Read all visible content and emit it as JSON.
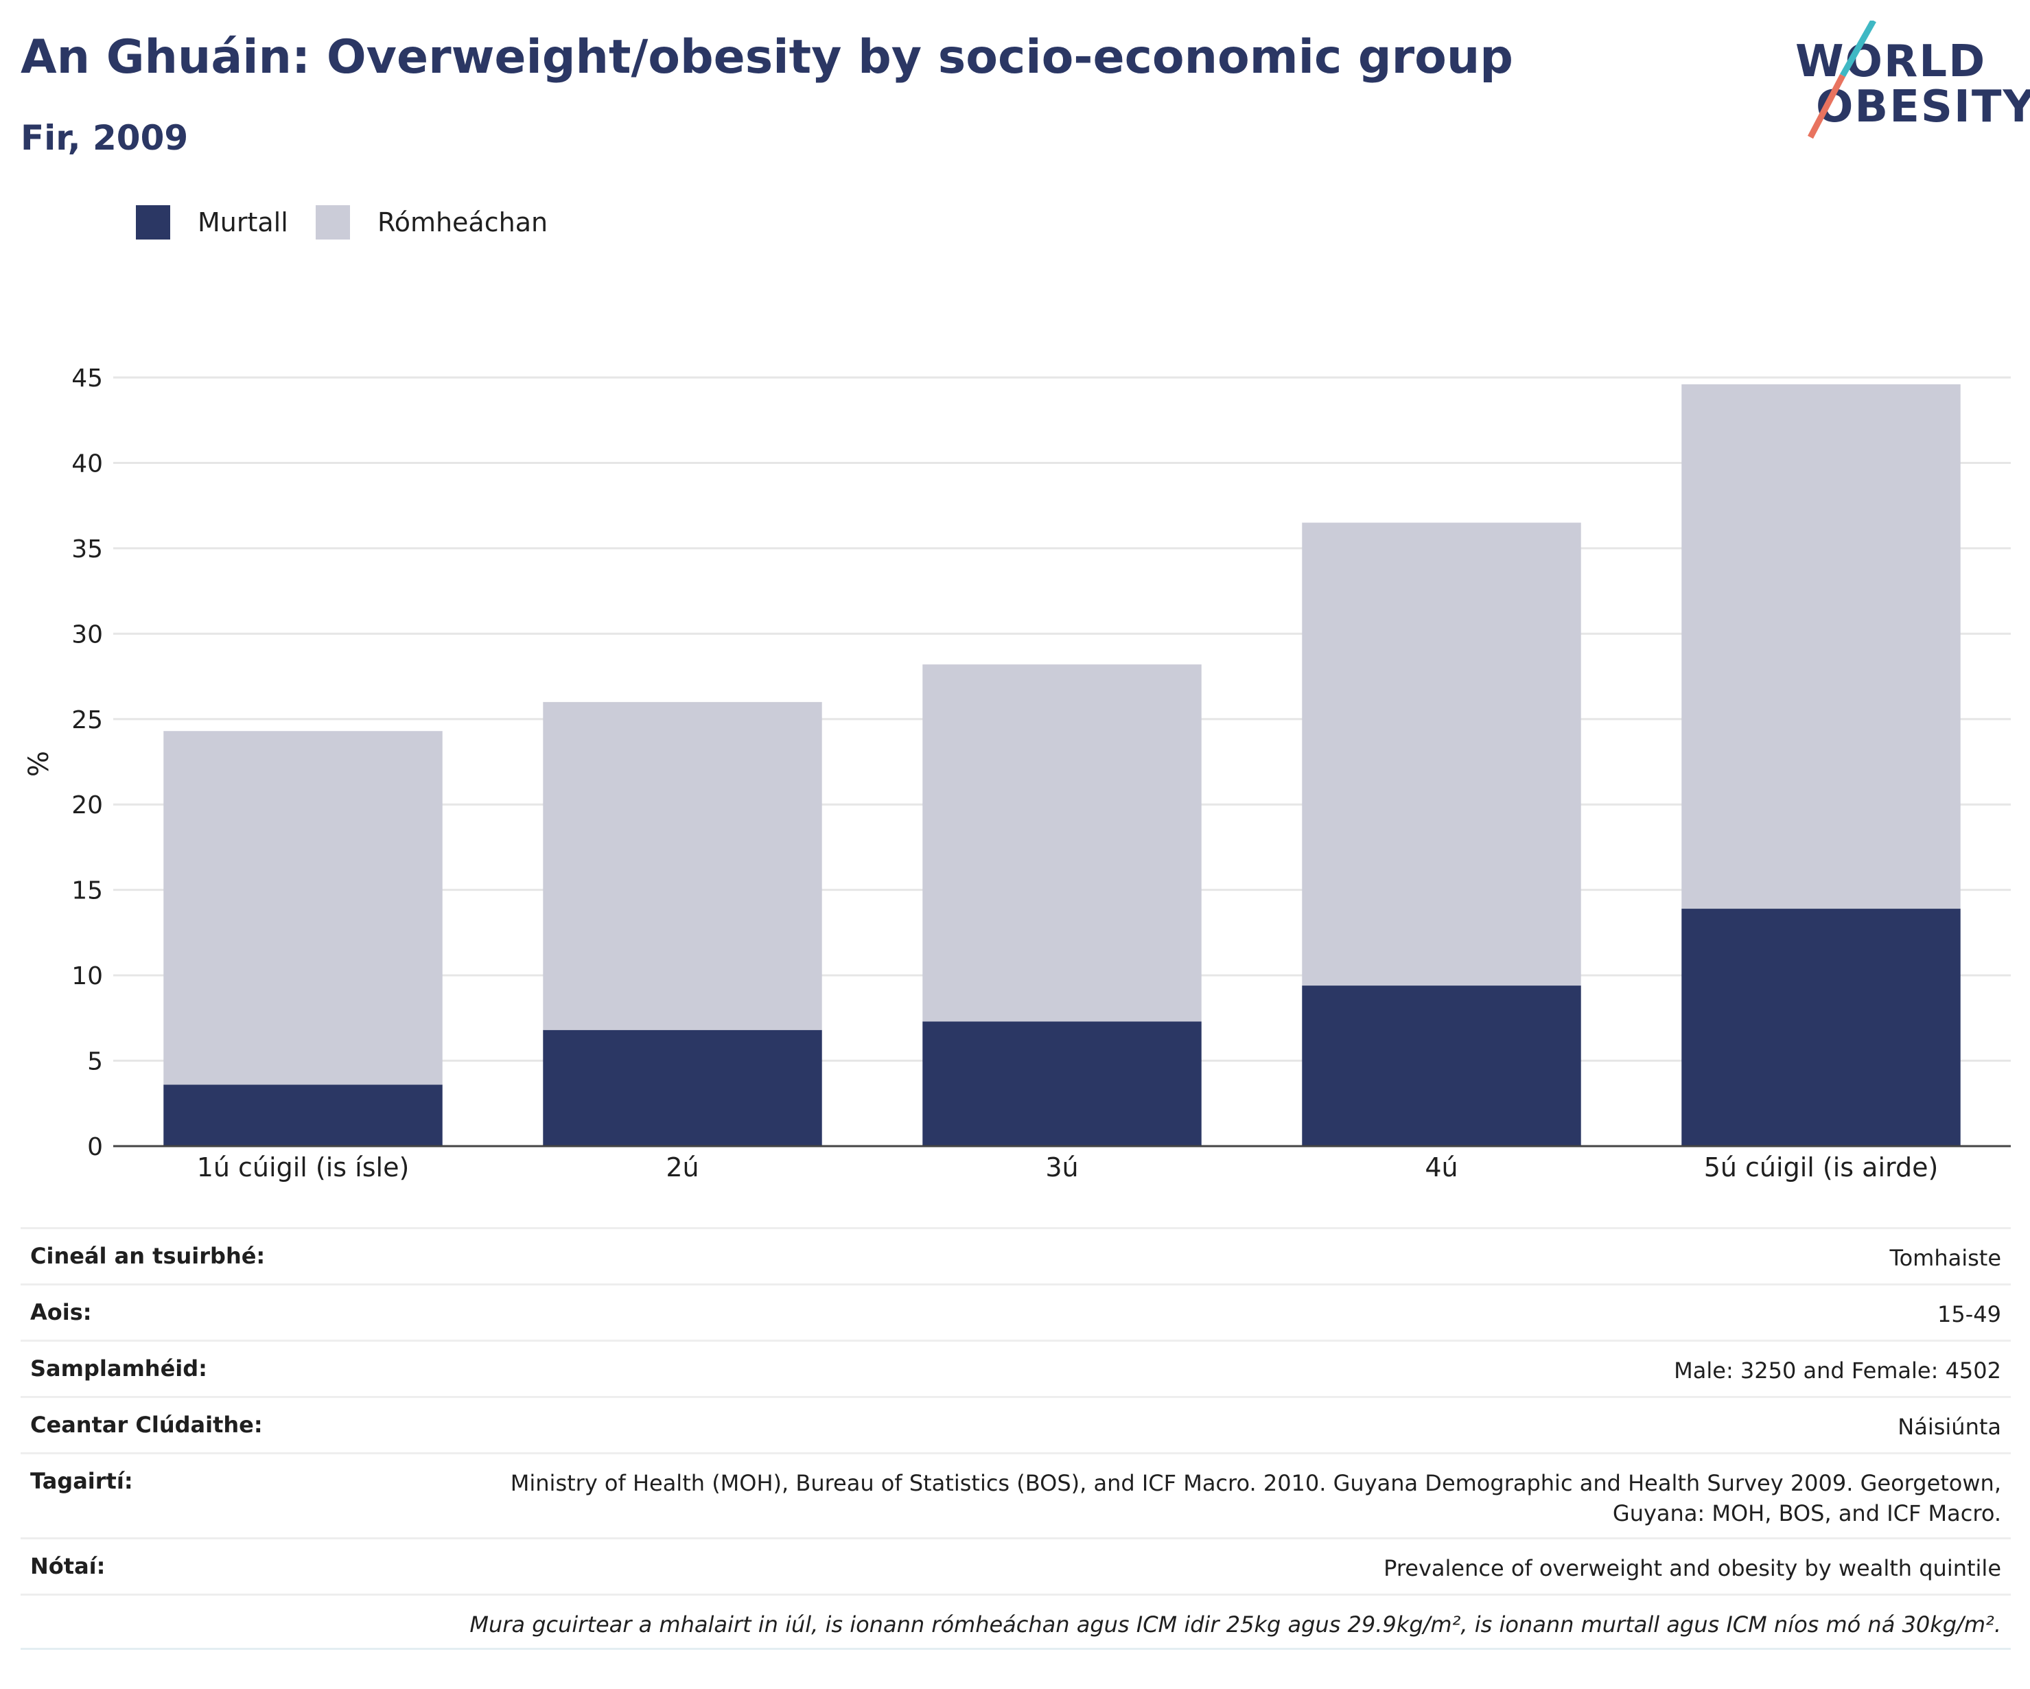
{
  "header": {
    "title": "An Ghuáin: Overweight/obesity by socio-economic group",
    "subtitle": "Fir, 2009"
  },
  "logo": {
    "line1": "WORLD",
    "line2": "OBESITY"
  },
  "colors": {
    "obese": "#2b3764",
    "overweight": "#cbccd8",
    "brand_teal": "#3fb8c4",
    "brand_coral": "#e8735f"
  },
  "chart_data": {
    "type": "bar",
    "stacked": true,
    "categories": [
      "1ú cúigil (is ísle)",
      "2ú",
      "3ú",
      "4ú",
      "5ú cúigil (is airde)"
    ],
    "series": [
      {
        "name": "Murtall",
        "values": [
          3.6,
          6.8,
          7.3,
          9.4,
          13.9
        ]
      },
      {
        "name": "Rómheáchan",
        "values": [
          20.7,
          19.2,
          20.9,
          27.1,
          30.7
        ]
      }
    ],
    "ylabel": "%",
    "ylim": [
      0,
      45
    ],
    "yticks": [
      0,
      5,
      10,
      15,
      20,
      25,
      30,
      35,
      40,
      45
    ],
    "grid": true,
    "legend_position": "top-left"
  },
  "meta": [
    {
      "key": "Cineál an tsuirbhé:",
      "value": "Tomhaiste"
    },
    {
      "key": "Aois:",
      "value": "15-49"
    },
    {
      "key": "Samplamhéid:",
      "value": "Male: 3250 and Female: 4502"
    },
    {
      "key": "Ceantar Clúdaithe:",
      "value": "Náisiúnta"
    },
    {
      "key": "Tagairtí:",
      "value": "Ministry of Health (MOH), Bureau of Statistics (BOS), and ICF Macro. 2010. Guyana Demographic and Health Survey 2009. Georgetown, Guyana: MOH, BOS, and ICF Macro."
    },
    {
      "key": "Nótaí:",
      "value": "Prevalence of overweight and obesity by wealth quintile"
    },
    {
      "key": "",
      "value": "Mura gcuirtear a mhalairt in iúl, is ionann rómheáchan agus ICM idir 25kg agus 29.9kg/m², is ionann murtall agus ICM níos mó ná 30kg/m²."
    }
  ]
}
